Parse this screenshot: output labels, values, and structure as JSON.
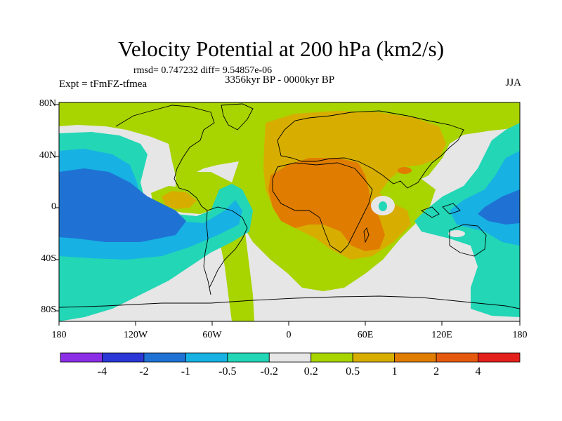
{
  "header": {
    "title": "Velocity Potential at 200 hPa (km2/s)",
    "stats": "rmsd= 0.747232 diff= 9.54857e-06",
    "experiment": "Expt = tFmFZ-tfmea",
    "period": "3356kyr BP - 0000kyr BP",
    "season": "JJA"
  },
  "map": {
    "lat_labels": [
      "80N",
      "40N",
      "0",
      "40S",
      "80S"
    ],
    "lon_labels": [
      "180",
      "120W",
      "60W",
      "0",
      "60E",
      "120E",
      "180"
    ]
  },
  "colorbar": {
    "colors": [
      "#8c2ee6",
      "#2a37d6",
      "#1f72d4",
      "#17b1e3",
      "#22d6b6",
      "#e6e6e6",
      "#a8d400",
      "#d7ae00",
      "#e07d00",
      "#e65a10",
      "#e4201c"
    ],
    "labels": [
      "-4",
      "-2",
      "-1",
      "-0.5",
      "-0.2",
      "0.2",
      "0.5",
      "1",
      "2",
      "4"
    ]
  }
}
